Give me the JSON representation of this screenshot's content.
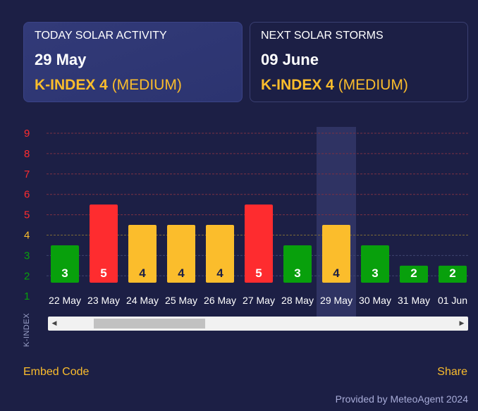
{
  "today_card": {
    "label": "TODAY SOLAR ACTIVITY",
    "date": "29 May",
    "k_label": "K-INDEX 4",
    "k_level": " (MEDIUM)"
  },
  "next_card": {
    "label": "NEXT SOLAR STORMS",
    "date": "09 June",
    "k_label": "K-INDEX 4",
    "k_level": " (MEDIUM)"
  },
  "colors": {
    "background": "#1c1f45",
    "low": "#08a00c",
    "medium": "#fbbd2c",
    "high": "#fe2c2f",
    "highlight": "#2f3363"
  },
  "chart_data": {
    "type": "bar",
    "ylabel": "K-INDEX",
    "ylim": [
      1,
      9
    ],
    "yticks": [
      9,
      8,
      7,
      6,
      5,
      4,
      3,
      2,
      1
    ],
    "categories": [
      "22 May",
      "23 May",
      "24 May",
      "25 May",
      "26 May",
      "27 May",
      "28 May",
      "29 May",
      "30 May",
      "31 May",
      "01 Jun"
    ],
    "values": [
      3,
      5,
      4,
      4,
      4,
      5,
      3,
      4,
      3,
      2,
      2
    ],
    "highlighted_category": "29 May",
    "grid": true
  },
  "footer": {
    "embed": "Embed Code",
    "share": "Share",
    "credit": "Provided by MeteoAgent 2024"
  },
  "scrollbar": {
    "left_icon": "triangle-left-icon",
    "right_icon": "triangle-right-icon"
  }
}
